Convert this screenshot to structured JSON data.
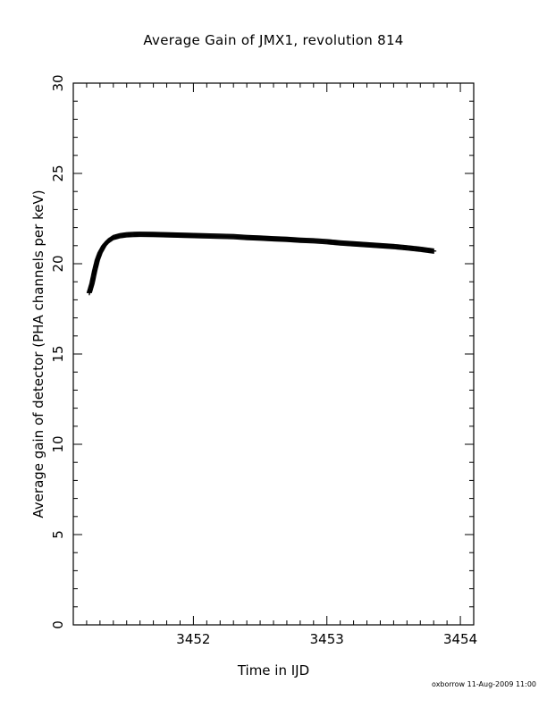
{
  "chart_data": {
    "type": "scatter",
    "title": "Average Gain of JMX1, revolution 814",
    "xlabel": "Time in IJD",
    "ylabel": "Average gain of detector (PHA channels per keV)",
    "xlim": [
      3451.1,
      3454.1
    ],
    "ylim": [
      0,
      30
    ],
    "x_major_ticks": [
      3452,
      3453,
      3454
    ],
    "x_tick_labels": [
      "3452",
      "3453",
      "3454"
    ],
    "y_major_ticks": [
      0,
      5,
      10,
      15,
      20,
      25,
      30
    ],
    "y_tick_labels": [
      "0",
      "5",
      "10",
      "15",
      "20",
      "25",
      "30"
    ],
    "marker": "plus",
    "marker_color": "#000000",
    "grid": false,
    "series": [
      {
        "x": [
          3451.22,
          3451.24,
          3451.26,
          3451.28,
          3451.3,
          3451.33,
          3451.36,
          3451.4,
          3451.45,
          3451.5,
          3451.55,
          3451.6,
          3451.7,
          3451.8,
          3451.9,
          3452.0,
          3452.1,
          3452.2,
          3452.3,
          3452.4,
          3452.5,
          3452.6,
          3452.7,
          3452.8,
          3452.9,
          3453.0,
          3453.1,
          3453.2,
          3453.3,
          3453.4,
          3453.5,
          3453.6,
          3453.7,
          3453.8
        ],
        "y": [
          18.4,
          18.9,
          19.6,
          20.2,
          20.6,
          21.0,
          21.25,
          21.45,
          21.55,
          21.6,
          21.62,
          21.63,
          21.62,
          21.6,
          21.58,
          21.56,
          21.54,
          21.52,
          21.5,
          21.45,
          21.42,
          21.38,
          21.35,
          21.3,
          21.27,
          21.22,
          21.15,
          21.1,
          21.05,
          21.0,
          20.95,
          20.88,
          20.8,
          20.7
        ]
      }
    ]
  },
  "footer": {
    "stamp": "oxborrow 11-Aug-2009 11:00"
  }
}
